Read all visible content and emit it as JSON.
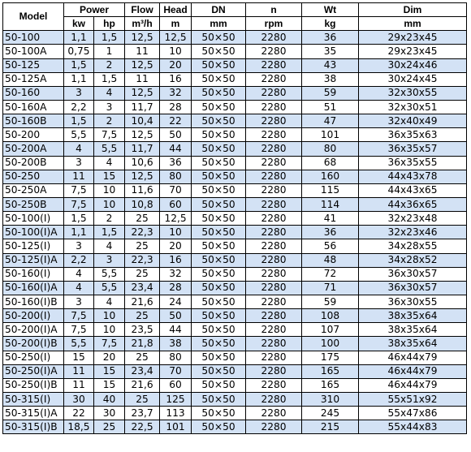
{
  "header": {
    "model": "Model",
    "power": "Power",
    "flow": "Flow",
    "head": "Head",
    "dn": "DN",
    "n": "n",
    "wt": "Wt",
    "dim": "Dim"
  },
  "units": {
    "kw": "kw",
    "hp": "hp",
    "flow": "m³/h",
    "head": "m",
    "dn": "mm",
    "n": "rpm",
    "wt": "kg",
    "dim": "mm"
  },
  "row_shading": {
    "shaded": "#d3e2f5",
    "plain": "#ffffff"
  },
  "rows": [
    {
      "model": "50-100",
      "kw": "1,1",
      "hp": "1,5",
      "flow": "12,5",
      "head": "12,5",
      "dn": "50×50",
      "n": "2280",
      "wt": "36",
      "dim": "29x23x45",
      "shaded": true
    },
    {
      "model": "50-100A",
      "kw": "0,75",
      "hp": "1",
      "flow": "11",
      "head": "10",
      "dn": "50×50",
      "n": "2280",
      "wt": "35",
      "dim": "29x23x45",
      "shaded": false
    },
    {
      "model": "50-125",
      "kw": "1,5",
      "hp": "2",
      "flow": "12,5",
      "head": "20",
      "dn": "50×50",
      "n": "2280",
      "wt": "43",
      "dim": "30x24x46",
      "shaded": true
    },
    {
      "model": "50-125A",
      "kw": "1,1",
      "hp": "1,5",
      "flow": "11",
      "head": "16",
      "dn": "50×50",
      "n": "2280",
      "wt": "38",
      "dim": "30x24x45",
      "shaded": false
    },
    {
      "model": "50-160",
      "kw": "3",
      "hp": "4",
      "flow": "12,5",
      "head": "32",
      "dn": "50×50",
      "n": "2280",
      "wt": "59",
      "dim": "32x30x55",
      "shaded": true
    },
    {
      "model": "50-160A",
      "kw": "2,2",
      "hp": "3",
      "flow": "11,7",
      "head": "28",
      "dn": "50×50",
      "n": "2280",
      "wt": "51",
      "dim": "32x30x51",
      "shaded": false
    },
    {
      "model": "50-160B",
      "kw": "1,5",
      "hp": "2",
      "flow": "10,4",
      "head": "22",
      "dn": "50×50",
      "n": "2280",
      "wt": "47",
      "dim": "32x40x49",
      "shaded": true
    },
    {
      "model": "50-200",
      "kw": "5,5",
      "hp": "7,5",
      "flow": "12,5",
      "head": "50",
      "dn": "50×50",
      "n": "2280",
      "wt": "101",
      "dim": "36x35x63",
      "shaded": false
    },
    {
      "model": "50-200A",
      "kw": "4",
      "hp": "5,5",
      "flow": "11,7",
      "head": "44",
      "dn": "50×50",
      "n": "2280",
      "wt": "80",
      "dim": "36x35x57",
      "shaded": true
    },
    {
      "model": "50-200B",
      "kw": "3",
      "hp": "4",
      "flow": "10,6",
      "head": "36",
      "dn": "50×50",
      "n": "2280",
      "wt": "68",
      "dim": "36x35x55",
      "shaded": false
    },
    {
      "model": "50-250",
      "kw": "11",
      "hp": "15",
      "flow": "12,5",
      "head": "80",
      "dn": "50×50",
      "n": "2280",
      "wt": "160",
      "dim": "44x43x78",
      "shaded": true
    },
    {
      "model": "50-250A",
      "kw": "7,5",
      "hp": "10",
      "flow": "11,6",
      "head": "70",
      "dn": "50×50",
      "n": "2280",
      "wt": "115",
      "dim": "44x43x65",
      "shaded": false
    },
    {
      "model": "50-250B",
      "kw": "7,5",
      "hp": "10",
      "flow": "10,8",
      "head": "60",
      "dn": "50×50",
      "n": "2280",
      "wt": "114",
      "dim": "44x36x65",
      "shaded": true
    },
    {
      "model": "50-100(I)",
      "kw": "1,5",
      "hp": "2",
      "flow": "25",
      "head": "12,5",
      "dn": "50×50",
      "n": "2280",
      "wt": "41",
      "dim": "32x23x48",
      "shaded": false
    },
    {
      "model": "50-100(I)A",
      "kw": "1,1",
      "hp": "1,5",
      "flow": "22,3",
      "head": "10",
      "dn": "50×50",
      "n": "2280",
      "wt": "36",
      "dim": "32x23x46",
      "shaded": true
    },
    {
      "model": "50-125(I)",
      "kw": "3",
      "hp": "4",
      "flow": "25",
      "head": "20",
      "dn": "50×50",
      "n": "2280",
      "wt": "56",
      "dim": "34x28x55",
      "shaded": false
    },
    {
      "model": "50-125(I)A",
      "kw": "2,2",
      "hp": "3",
      "flow": "22,3",
      "head": "16",
      "dn": "50×50",
      "n": "2280",
      "wt": "48",
      "dim": "34x28x52",
      "shaded": true
    },
    {
      "model": "50-160(I)",
      "kw": "4",
      "hp": "5,5",
      "flow": "25",
      "head": "32",
      "dn": "50×50",
      "n": "2280",
      "wt": "72",
      "dim": "36x30x57",
      "shaded": false
    },
    {
      "model": "50-160(I)A",
      "kw": "4",
      "hp": "5,5",
      "flow": "23,4",
      "head": "28",
      "dn": "50×50",
      "n": "2280",
      "wt": "71",
      "dim": "36x30x57",
      "shaded": true
    },
    {
      "model": "50-160(I)B",
      "kw": "3",
      "hp": "4",
      "flow": "21,6",
      "head": "24",
      "dn": "50×50",
      "n": "2280",
      "wt": "59",
      "dim": "36x30x55",
      "shaded": false
    },
    {
      "model": "50-200(I)",
      "kw": "7,5",
      "hp": "10",
      "flow": "25",
      "head": "50",
      "dn": "50×50",
      "n": "2280",
      "wt": "108",
      "dim": "38x35x64",
      "shaded": true
    },
    {
      "model": "50-200(I)A",
      "kw": "7,5",
      "hp": "10",
      "flow": "23,5",
      "head": "44",
      "dn": "50×50",
      "n": "2280",
      "wt": "107",
      "dim": "38x35x64",
      "shaded": false
    },
    {
      "model": "50-200(I)B",
      "kw": "5,5",
      "hp": "7,5",
      "flow": "21,8",
      "head": "38",
      "dn": "50×50",
      "n": "2280",
      "wt": "100",
      "dim": "38x35x64",
      "shaded": true
    },
    {
      "model": "50-250(I)",
      "kw": "15",
      "hp": "20",
      "flow": "25",
      "head": "80",
      "dn": "50×50",
      "n": "2280",
      "wt": "175",
      "dim": "46x44x79",
      "shaded": false
    },
    {
      "model": "50-250(I)A",
      "kw": "11",
      "hp": "15",
      "flow": "23,4",
      "head": "70",
      "dn": "50×50",
      "n": "2280",
      "wt": "165",
      "dim": "46x44x79",
      "shaded": true
    },
    {
      "model": "50-250(I)B",
      "kw": "11",
      "hp": "15",
      "flow": "21,6",
      "head": "60",
      "dn": "50×50",
      "n": "2280",
      "wt": "165",
      "dim": "46x44x79",
      "shaded": false
    },
    {
      "model": "50-315(I)",
      "kw": "30",
      "hp": "40",
      "flow": "25",
      "head": "125",
      "dn": "50×50",
      "n": "2280",
      "wt": "310",
      "dim": "55x51x92",
      "shaded": true
    },
    {
      "model": "50-315(I)A",
      "kw": "22",
      "hp": "30",
      "flow": "23,7",
      "head": "113",
      "dn": "50×50",
      "n": "2280",
      "wt": "245",
      "dim": "55x47x86",
      "shaded": false
    },
    {
      "model": "50-315(I)B",
      "kw": "18,5",
      "hp": "25",
      "flow": "22,5",
      "head": "101",
      "dn": "50×50",
      "n": "2280",
      "wt": "215",
      "dim": "55x44x83",
      "shaded": true
    }
  ]
}
